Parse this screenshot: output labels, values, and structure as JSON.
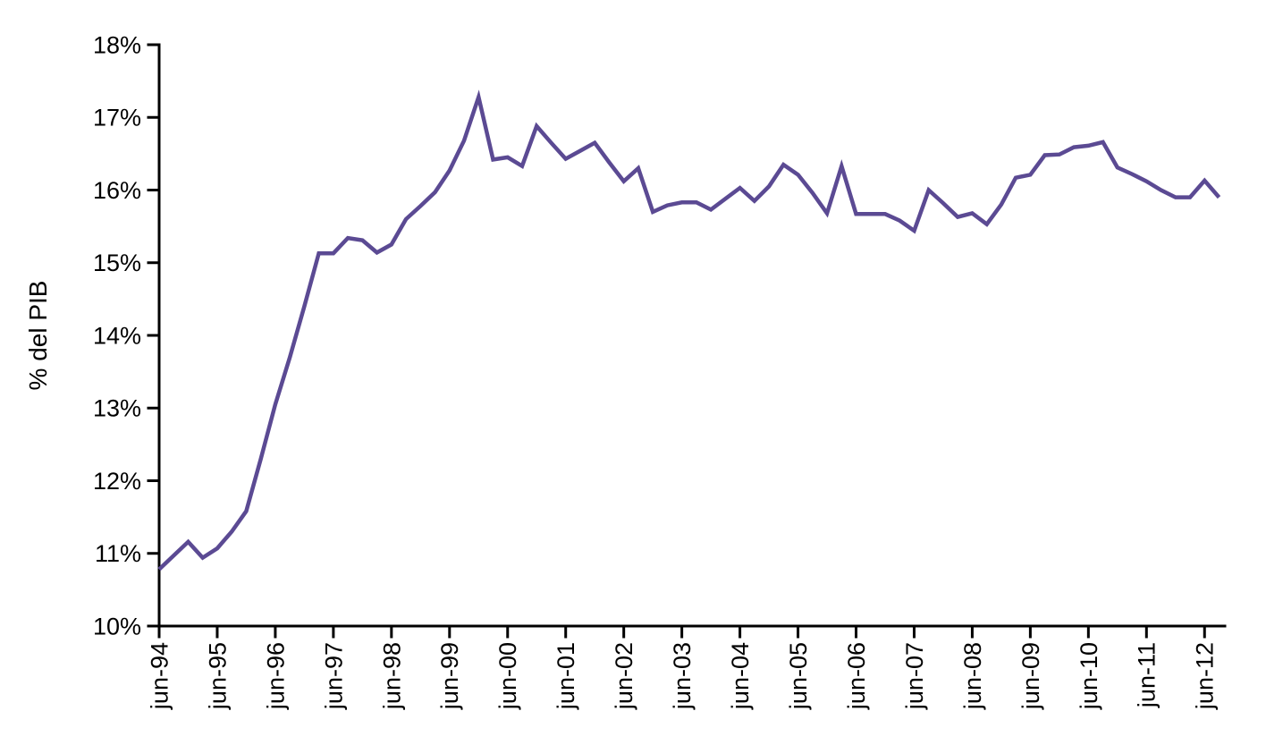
{
  "page": {
    "background": "#ffffff"
  },
  "chart_data": {
    "type": "line",
    "title": "",
    "xlabel": "",
    "ylabel": "% del PIB",
    "grid": false,
    "legend": "none",
    "axis_color": "#000000",
    "ylim": [
      10,
      18
    ],
    "xlim": [
      1994.5,
      2012.85
    ],
    "y_ticks": [
      10,
      11,
      12,
      13,
      14,
      15,
      16,
      17,
      18
    ],
    "y_tick_labels": [
      "10%",
      "11%",
      "12%",
      "13%",
      "14%",
      "15%",
      "16%",
      "17%",
      "18%"
    ],
    "x_tick_positions": [
      1994.5,
      1995.5,
      1996.5,
      1997.5,
      1998.5,
      1999.5,
      2000.5,
      2001.5,
      2002.5,
      2003.5,
      2004.5,
      2005.5,
      2006.5,
      2007.5,
      2008.5,
      2009.5,
      2010.5,
      2011.5,
      2012.5
    ],
    "x_tick_labels": [
      "jun-94",
      "jun-95",
      "jun-96",
      "jun-97",
      "jun-98",
      "jun-99",
      "jun-00",
      "jun-01",
      "jun-02",
      "jun-03",
      "jun-04",
      "jun-05",
      "jun-06",
      "jun-07",
      "jun-08",
      "jun-09",
      "jun-10",
      "jun-11",
      "jun-12"
    ],
    "series": [
      {
        "name": "% del PIB",
        "color": "#5b4a93",
        "x": [
          1994.5,
          1994.75,
          1995.0,
          1995.25,
          1995.5,
          1995.75,
          1996.0,
          1996.25,
          1996.5,
          1996.75,
          1997.0,
          1997.25,
          1997.5,
          1997.75,
          1998.0,
          1998.25,
          1998.5,
          1998.75,
          1999.0,
          1999.25,
          1999.5,
          1999.75,
          2000.0,
          2000.25,
          2000.5,
          2000.75,
          2001.0,
          2001.25,
          2001.5,
          2001.75,
          2002.0,
          2002.25,
          2002.5,
          2002.75,
          2003.0,
          2003.25,
          2003.5,
          2003.75,
          2004.0,
          2004.25,
          2004.5,
          2004.75,
          2005.0,
          2005.25,
          2005.5,
          2005.75,
          2006.0,
          2006.25,
          2006.5,
          2006.75,
          2007.0,
          2007.25,
          2007.5,
          2007.75,
          2008.0,
          2008.25,
          2008.5,
          2008.75,
          2009.0,
          2009.25,
          2009.5,
          2009.75,
          2010.0,
          2010.25,
          2010.5,
          2010.75,
          2011.0,
          2011.25,
          2011.5,
          2011.75,
          2012.0,
          2012.25,
          2012.5,
          2012.75
        ],
        "values": [
          10.78,
          10.97,
          11.16,
          10.94,
          11.07,
          11.3,
          11.58,
          12.3,
          13.05,
          13.7,
          14.4,
          15.13,
          15.13,
          15.34,
          15.31,
          15.14,
          15.25,
          15.6,
          15.78,
          15.97,
          16.27,
          16.68,
          17.28,
          16.42,
          16.45,
          16.33,
          16.88,
          16.65,
          16.43,
          16.54,
          16.65,
          16.38,
          16.12,
          16.3,
          15.7,
          15.79,
          15.83,
          15.83,
          15.73,
          15.88,
          16.03,
          15.85,
          16.05,
          16.35,
          16.21,
          15.96,
          15.68,
          16.33,
          15.67,
          15.67,
          15.67,
          15.58,
          15.44,
          16.0,
          15.82,
          15.63,
          15.68,
          15.53,
          15.8,
          16.17,
          16.21,
          16.48,
          16.49,
          16.59,
          16.61,
          16.66,
          16.31,
          16.22,
          16.12,
          16.0,
          15.9,
          15.9,
          16.13,
          15.9
        ]
      }
    ]
  }
}
